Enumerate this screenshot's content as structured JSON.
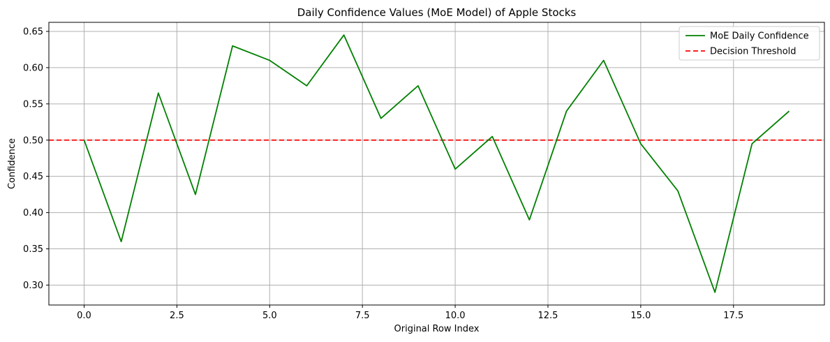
{
  "chart_data": {
    "type": "line",
    "title": "Daily Confidence Values (MoE Model) of Apple Stocks",
    "xlabel": "Original Row Index",
    "ylabel": "Confidence",
    "xlim": [
      -0.95,
      19.95
    ],
    "ylim": [
      0.2725,
      0.6625
    ],
    "x_ticks": [
      0.0,
      2.5,
      5.0,
      7.5,
      10.0,
      12.5,
      15.0,
      17.5
    ],
    "x_tick_labels": [
      "0.0",
      "2.5",
      "5.0",
      "7.5",
      "10.0",
      "12.5",
      "15.0",
      "17.5"
    ],
    "y_ticks": [
      0.3,
      0.35,
      0.4,
      0.45,
      0.5,
      0.55,
      0.6,
      0.65
    ],
    "y_tick_labels": [
      "0.30",
      "0.35",
      "0.40",
      "0.45",
      "0.50",
      "0.55",
      "0.60",
      "0.65"
    ],
    "grid": true,
    "legend_position": "top-right",
    "series": [
      {
        "name": "MoE Daily Confidence",
        "color": "#008000",
        "style": "solid",
        "x": [
          0,
          1,
          2,
          3,
          4,
          5,
          6,
          7,
          8,
          9,
          10,
          11,
          12,
          13,
          14,
          15,
          16,
          17,
          18,
          19
        ],
        "y": [
          0.5,
          0.36,
          0.565,
          0.425,
          0.63,
          0.61,
          0.575,
          0.645,
          0.53,
          0.575,
          0.46,
          0.505,
          0.39,
          0.54,
          0.61,
          0.495,
          0.43,
          0.29,
          0.495,
          0.54
        ]
      }
    ],
    "threshold": {
      "name": "Decision Threshold",
      "value": 0.5,
      "color": "#ff0000",
      "style": "dashed"
    }
  }
}
